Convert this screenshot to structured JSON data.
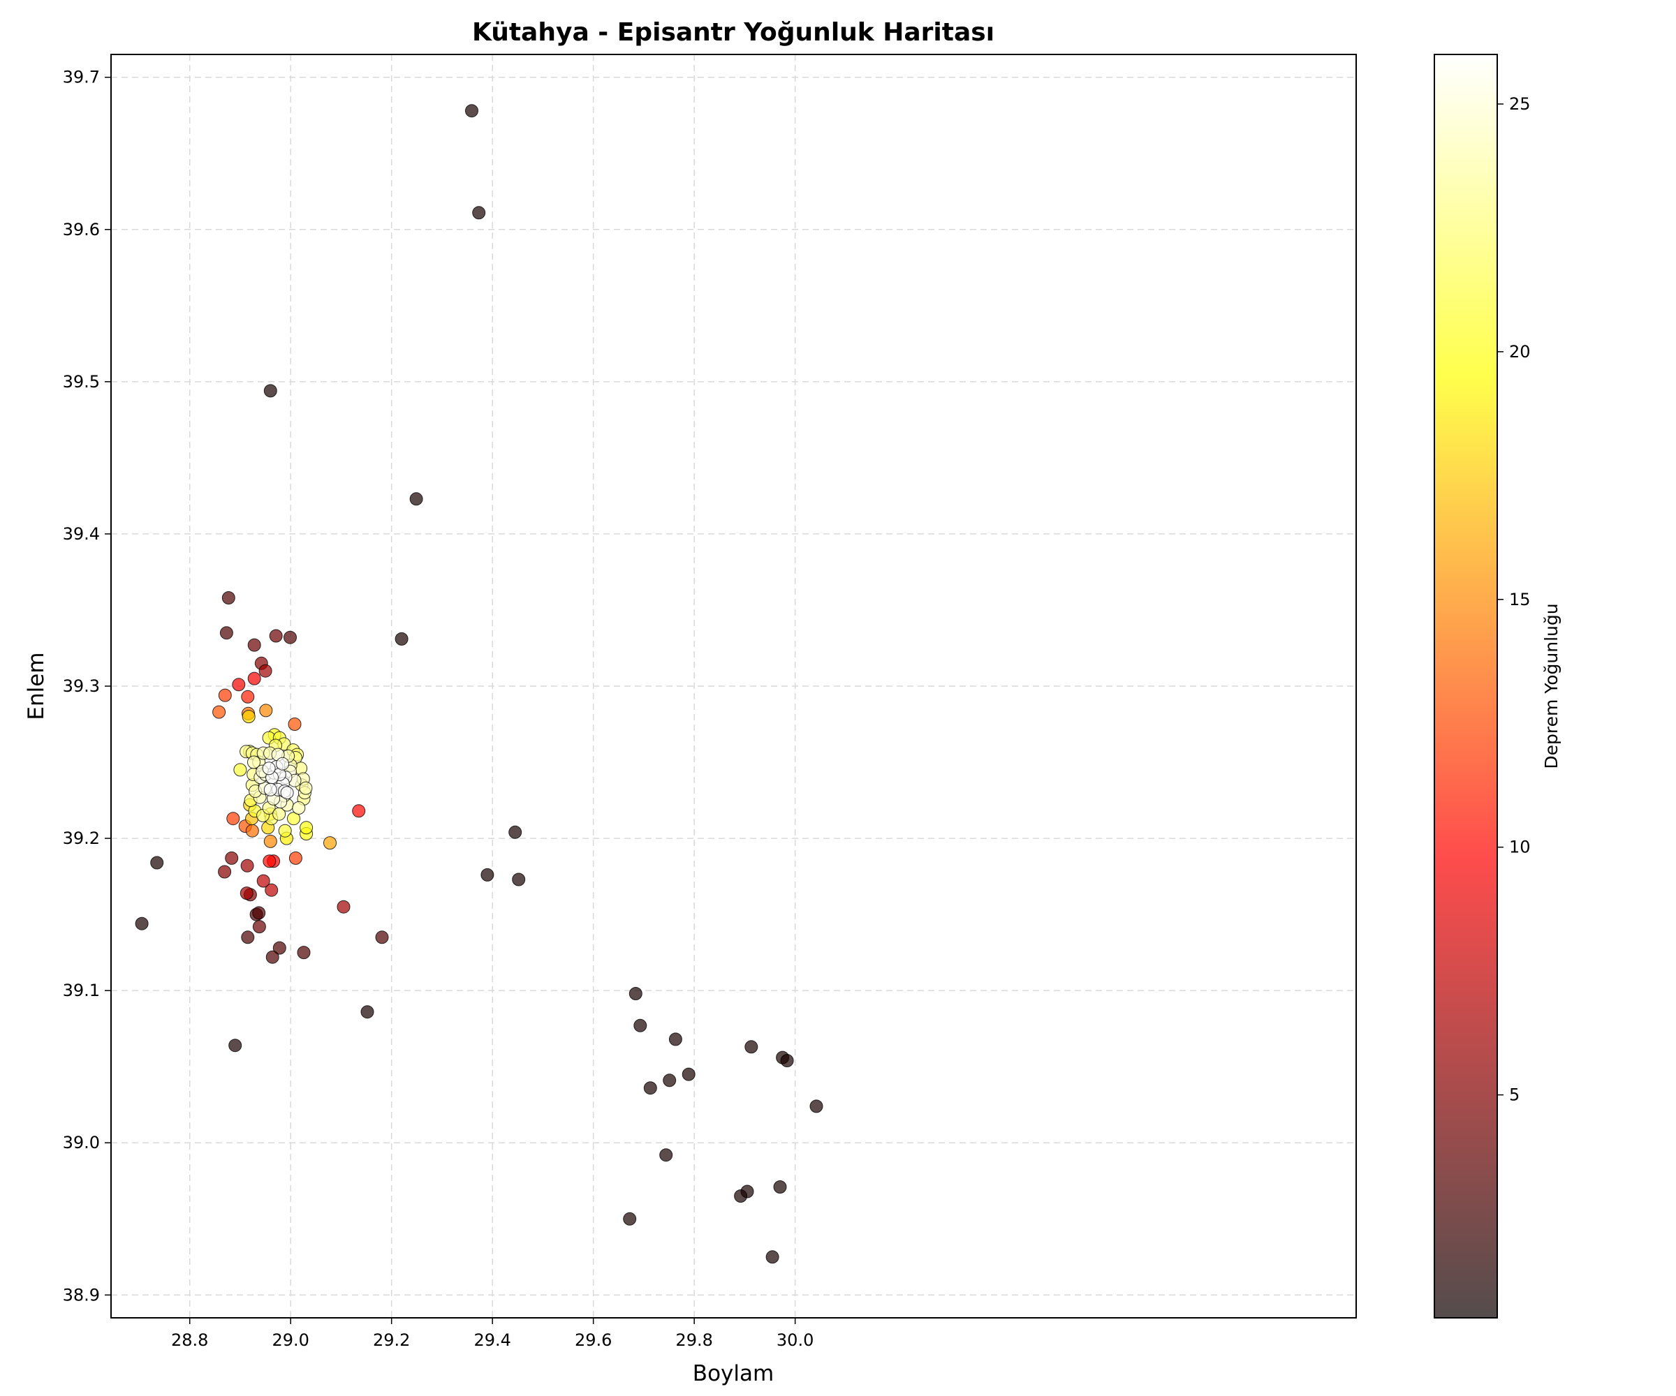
{
  "chart_data": {
    "type": "scatter",
    "title": "Kütahya - Episantr Yoğunluk Haritası",
    "xlabel": "Boylam",
    "ylabel": "Enlem",
    "xlim": [
      28.644,
      31.112
    ],
    "ylim": [
      38.885,
      39.715
    ],
    "x_ticks": [
      28.8,
      29.0,
      29.2,
      29.4,
      29.6,
      29.8,
      30.0
    ],
    "x_tick_labels": [
      "28.8",
      "29.0",
      "29.2",
      "29.4",
      "29.6",
      "29.8",
      "30.0"
    ],
    "y_ticks": [
      38.9,
      39.0,
      39.1,
      39.2,
      39.3,
      39.4,
      39.5,
      39.6,
      39.7
    ],
    "y_tick_labels": [
      "38.9",
      "39.0",
      "39.1",
      "39.2",
      "39.3",
      "39.4",
      "39.5",
      "39.6",
      "39.7"
    ],
    "grid": true,
    "colormap": "hot",
    "colorbar": {
      "label": "Deprem Yoğunluğu",
      "range": [
        0.5,
        26
      ],
      "ticks": [
        5,
        10,
        15,
        20,
        25
      ],
      "tick_labels": [
        "5",
        "10",
        "15",
        "20",
        "25"
      ]
    },
    "points": [
      [
        29.359,
        39.678,
        1
      ],
      [
        29.373,
        39.611,
        1
      ],
      [
        28.96,
        39.494,
        1
      ],
      [
        29.249,
        39.423,
        1
      ],
      [
        29.22,
        39.331,
        1
      ],
      [
        29.445,
        39.204,
        1
      ],
      [
        29.39,
        39.176,
        1
      ],
      [
        29.452,
        39.173,
        1
      ],
      [
        28.735,
        39.184,
        1
      ],
      [
        28.705,
        39.144,
        1
      ],
      [
        28.89,
        39.064,
        1
      ],
      [
        29.152,
        39.086,
        1
      ],
      [
        29.181,
        39.135,
        3
      ],
      [
        29.026,
        39.125,
        3
      ],
      [
        28.978,
        39.128,
        3
      ],
      [
        28.964,
        39.122,
        3
      ],
      [
        28.915,
        39.135,
        3
      ],
      [
        28.938,
        39.142,
        4
      ],
      [
        28.932,
        39.15,
        3
      ],
      [
        28.937,
        39.151,
        3
      ],
      [
        29.105,
        39.155,
        6
      ],
      [
        28.92,
        39.163,
        5
      ],
      [
        28.913,
        39.164,
        6
      ],
      [
        28.962,
        39.166,
        7
      ],
      [
        28.946,
        39.172,
        7
      ],
      [
        28.869,
        39.178,
        5
      ],
      [
        28.914,
        39.182,
        6
      ],
      [
        28.883,
        39.187,
        5
      ],
      [
        28.966,
        39.185,
        9
      ],
      [
        28.958,
        39.185,
        10
      ],
      [
        29.135,
        39.218,
        10
      ],
      [
        28.877,
        39.358,
        3
      ],
      [
        28.873,
        39.335,
        3
      ],
      [
        28.971,
        39.333,
        4
      ],
      [
        28.999,
        39.332,
        3
      ],
      [
        28.928,
        39.327,
        4
      ],
      [
        28.942,
        39.315,
        5
      ],
      [
        28.95,
        39.31,
        6
      ],
      [
        28.928,
        39.305,
        9
      ],
      [
        28.897,
        39.301,
        9
      ],
      [
        28.87,
        39.294,
        12
      ],
      [
        28.915,
        39.293,
        11
      ],
      [
        28.858,
        39.283,
        13
      ],
      [
        28.916,
        39.282,
        14
      ],
      [
        28.917,
        39.28,
        18
      ],
      [
        28.951,
        39.284,
        15
      ],
      [
        29.008,
        39.275,
        13
      ],
      [
        29.01,
        39.187,
        12
      ],
      [
        28.886,
        39.213,
        12
      ],
      [
        28.91,
        39.208,
        13
      ],
      [
        28.924,
        39.205,
        14
      ],
      [
        28.96,
        39.198,
        15
      ],
      [
        29.078,
        39.197,
        16
      ],
      [
        28.923,
        39.213,
        17
      ],
      [
        28.955,
        39.207,
        18
      ],
      [
        28.919,
        39.222,
        18
      ],
      [
        28.96,
        39.216,
        19
      ],
      [
        28.992,
        39.2,
        19
      ],
      [
        29.031,
        39.203,
        20
      ],
      [
        29.031,
        39.207,
        20
      ],
      [
        28.989,
        39.205,
        21
      ],
      [
        29.006,
        39.213,
        21
      ],
      [
        28.962,
        39.213,
        22
      ],
      [
        28.945,
        39.215,
        22
      ],
      [
        28.929,
        39.218,
        21
      ],
      [
        28.921,
        39.225,
        22
      ],
      [
        28.957,
        39.22,
        23
      ],
      [
        28.977,
        39.216,
        23
      ],
      [
        28.993,
        39.222,
        24
      ],
      [
        29.016,
        39.22,
        24
      ],
      [
        29.026,
        39.226,
        23
      ],
      [
        29.028,
        39.23,
        24
      ],
      [
        28.939,
        39.227,
        24
      ],
      [
        28.93,
        39.231,
        24
      ],
      [
        28.924,
        39.235,
        23
      ],
      [
        28.949,
        39.233,
        25
      ],
      [
        28.94,
        39.24,
        25
      ],
      [
        28.926,
        39.242,
        23
      ],
      [
        28.9,
        39.245,
        21
      ],
      [
        28.937,
        39.25,
        24
      ],
      [
        28.927,
        39.25,
        24
      ],
      [
        28.919,
        39.257,
        23
      ],
      [
        28.912,
        39.257,
        23
      ],
      [
        28.924,
        39.256,
        23
      ],
      [
        28.933,
        39.255,
        23
      ],
      [
        28.946,
        39.256,
        24
      ],
      [
        28.959,
        39.256,
        24
      ],
      [
        28.957,
        39.266,
        21
      ],
      [
        28.968,
        39.268,
        20
      ],
      [
        28.978,
        39.266,
        21
      ],
      [
        28.987,
        39.262,
        22
      ],
      [
        28.97,
        39.261,
        22
      ],
      [
        29.005,
        39.258,
        22
      ],
      [
        29.01,
        39.253,
        23
      ],
      [
        29.013,
        39.255,
        22
      ],
      [
        29.02,
        39.246,
        23
      ],
      [
        29.0,
        39.248,
        24
      ],
      [
        28.999,
        39.244,
        25
      ],
      [
        28.995,
        39.254,
        24
      ],
      [
        29.025,
        39.239,
        24
      ],
      [
        29.03,
        39.233,
        24
      ],
      [
        29.022,
        39.235,
        23
      ],
      [
        29.008,
        39.238,
        25
      ],
      [
        28.99,
        39.24,
        26
      ],
      [
        28.985,
        39.236,
        26
      ],
      [
        28.975,
        39.232,
        26
      ],
      [
        28.987,
        39.228,
        25
      ],
      [
        28.98,
        39.224,
        25
      ],
      [
        28.988,
        39.231,
        26
      ],
      [
        28.993,
        39.23,
        26
      ],
      [
        28.967,
        39.243,
        26
      ],
      [
        28.972,
        39.247,
        26
      ],
      [
        28.978,
        39.242,
        26
      ],
      [
        28.963,
        39.24,
        26
      ],
      [
        28.957,
        39.246,
        26
      ],
      [
        28.95,
        39.242,
        25
      ],
      [
        28.96,
        39.232,
        26
      ],
      [
        28.966,
        39.226,
        25
      ],
      [
        28.984,
        39.249,
        26
      ],
      [
        28.975,
        39.255,
        25
      ],
      [
        28.944,
        39.244,
        25
      ],
      [
        29.684,
        39.098,
        1
      ],
      [
        29.693,
        39.077,
        1
      ],
      [
        29.763,
        39.068,
        1
      ],
      [
        29.913,
        39.063,
        1
      ],
      [
        29.975,
        39.056,
        1
      ],
      [
        29.984,
        39.054,
        1
      ],
      [
        29.789,
        39.045,
        1
      ],
      [
        29.751,
        39.041,
        1
      ],
      [
        29.713,
        39.036,
        1
      ],
      [
        30.042,
        39.024,
        1
      ],
      [
        29.744,
        38.992,
        1
      ],
      [
        29.97,
        38.971,
        1
      ],
      [
        29.905,
        38.968,
        1
      ],
      [
        29.892,
        38.965,
        1
      ],
      [
        29.672,
        38.95,
        1
      ],
      [
        29.955,
        38.925,
        1
      ]
    ]
  }
}
